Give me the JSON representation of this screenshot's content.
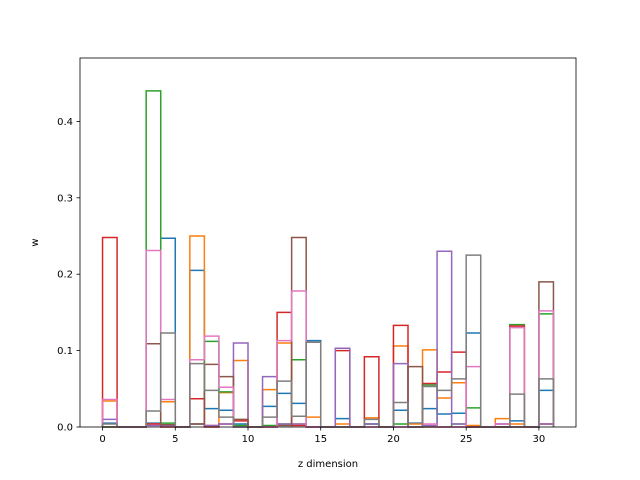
{
  "chart_data": {
    "type": "bar",
    "subtype": "step-histogram",
    "title": "",
    "xlabel": "z dimension",
    "ylabel": "w",
    "xlim": [
      -1.55,
      32.55
    ],
    "ylim": [
      0,
      0.483
    ],
    "xticks": [
      0,
      5,
      10,
      15,
      20,
      25,
      30
    ],
    "yticks": [
      0.0,
      0.1,
      0.2,
      0.3,
      0.4
    ],
    "ytick_labels": [
      "0.0",
      "0.1",
      "0.2",
      "0.3",
      "0.4"
    ],
    "grid": false,
    "legend": "none",
    "bin_edges_start": 0,
    "bin_width": 1,
    "categories": [
      "0",
      "1",
      "2",
      "3",
      "4",
      "5",
      "6",
      "7",
      "8",
      "9",
      "10",
      "11",
      "12",
      "13",
      "14",
      "15",
      "16",
      "17",
      "18",
      "19",
      "20",
      "21",
      "22",
      "23",
      "24",
      "25",
      "26",
      "27",
      "28",
      "29",
      "30"
    ],
    "series": [
      {
        "color": "#1f77b4",
        "values": [
          0.005,
          0,
          0,
          0.005,
          0.247,
          0,
          0.205,
          0.024,
          0.022,
          0.004,
          0,
          0.027,
          0.044,
          0.031,
          0.113,
          0,
          0.011,
          0,
          0.004,
          0,
          0.022,
          0.005,
          0.024,
          0.017,
          0.018,
          0.123,
          0,
          0.004,
          0.008,
          0,
          0.048
        ]
      },
      {
        "color": "#ff7f0e",
        "values": [
          0.034,
          0,
          0,
          0.004,
          0.033,
          0,
          0.25,
          0.002,
          0.045,
          0.087,
          0,
          0.049,
          0.11,
          0.004,
          0.013,
          0,
          0.004,
          0,
          0.012,
          0,
          0.106,
          0.004,
          0.101,
          0.038,
          0.058,
          0.002,
          0,
          0.011,
          0.004,
          0,
          0.004
        ]
      },
      {
        "color": "#2ca02c",
        "values": [
          0,
          0,
          0,
          0.44,
          0.005,
          0,
          0.004,
          0.112,
          0.046,
          0.002,
          0,
          0.002,
          0.004,
          0.088,
          0,
          0,
          0,
          0,
          0.004,
          0,
          0.004,
          0,
          0.055,
          0,
          0.004,
          0.025,
          0,
          0,
          0.134,
          0,
          0.148
        ]
      },
      {
        "color": "#d62728",
        "values": [
          0.248,
          0,
          0,
          0.004,
          0,
          0,
          0.037,
          0,
          0.004,
          0.008,
          0,
          0,
          0.15,
          0.002,
          0,
          0,
          0.1,
          0,
          0.092,
          0,
          0.133,
          0,
          0.057,
          0.072,
          0.098,
          0,
          0,
          0,
          0.132,
          0,
          0.004
        ]
      },
      {
        "color": "#9467bd",
        "values": [
          0.01,
          0,
          0,
          0.002,
          0.002,
          0,
          0.004,
          0.002,
          0.004,
          0.11,
          0,
          0.066,
          0.004,
          0.004,
          0,
          0,
          0.103,
          0,
          0.004,
          0,
          0.083,
          0,
          0.002,
          0.23,
          0.004,
          0,
          0,
          0.004,
          0,
          0,
          0.004
        ]
      },
      {
        "color": "#8c564b",
        "values": [
          0,
          0,
          0,
          0.109,
          0.003,
          0,
          0.004,
          0.082,
          0.066,
          0.01,
          0,
          0,
          0.002,
          0.248,
          0,
          0,
          0,
          0,
          0,
          0,
          0,
          0.079,
          0,
          0,
          0,
          0,
          0,
          0,
          0,
          0,
          0.19
        ]
      },
      {
        "color": "#e377c2",
        "values": [
          0.036,
          0,
          0,
          0.231,
          0.036,
          0,
          0.088,
          0.119,
          0.052,
          0,
          0,
          0,
          0.113,
          0.178,
          0,
          0,
          0,
          0,
          0,
          0,
          0,
          0,
          0.004,
          0,
          0,
          0.079,
          0,
          0.004,
          0.13,
          0,
          0.152
        ]
      },
      {
        "color": "#7f7f7f",
        "values": [
          0.004,
          0,
          0,
          0.021,
          0.123,
          0,
          0.083,
          0.048,
          0.013,
          0,
          0,
          0.013,
          0.06,
          0.014,
          0.111,
          0,
          0,
          0,
          0.01,
          0,
          0.032,
          0,
          0.053,
          0.048,
          0.063,
          0.225,
          0,
          0,
          0.043,
          0,
          0.063
        ]
      }
    ]
  }
}
